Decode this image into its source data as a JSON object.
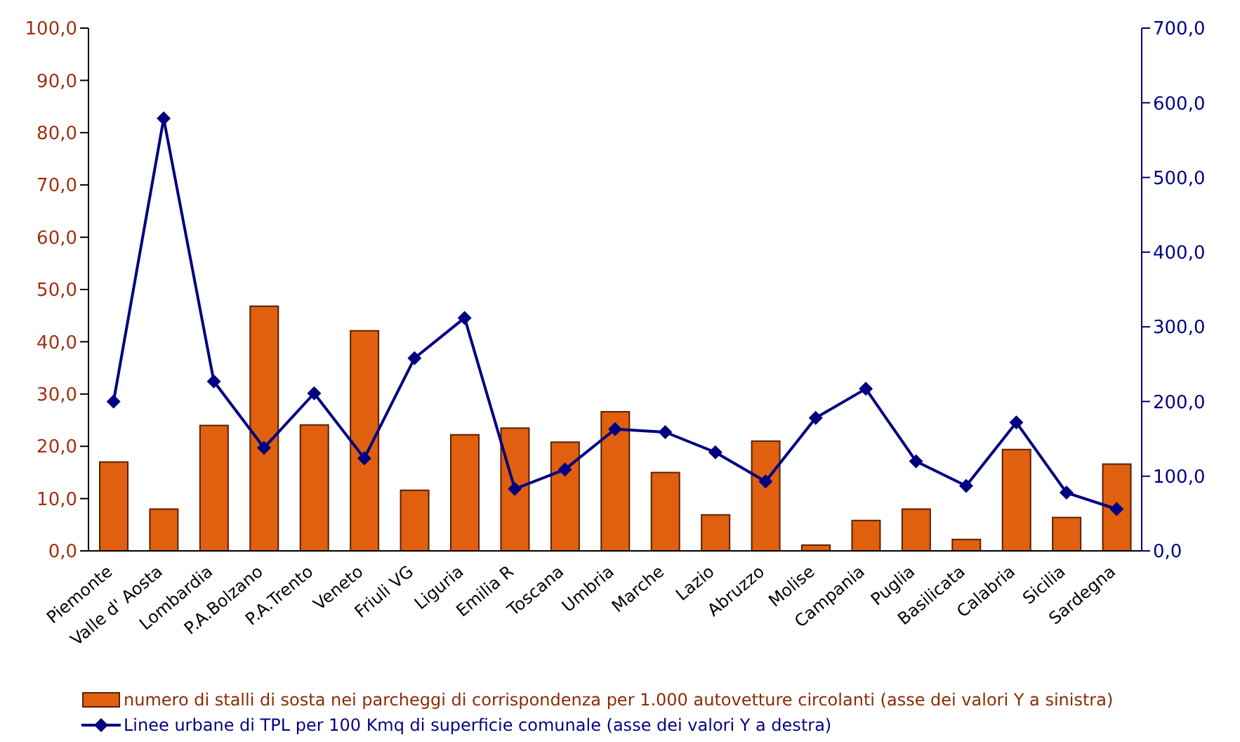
{
  "chart_data": {
    "type": "bar",
    "categories": [
      "Piemonte",
      "Valle d' Aosta",
      "Lombardia",
      "P.A.Bolzano",
      "P.A.Trento",
      "Veneto",
      "Friuli VG",
      "Liguria",
      "Emilia R",
      "Toscana",
      "Umbria",
      "Marche",
      "Lazio",
      "Abruzzo",
      "Molise",
      "Campania",
      "Puglia",
      "Basilicata",
      "Calabria",
      "Sicilia",
      "Sardegna"
    ],
    "series": [
      {
        "name": "numero di stalli di sosta nei parcheggi di corrispondenza per 1.000 autovetture circolanti (asse dei valori Y a sinistra)",
        "color": "#e0600f",
        "values": [
          17.0,
          8.0,
          24.0,
          46.8,
          24.1,
          42.1,
          11.6,
          22.2,
          23.5,
          20.8,
          26.6,
          15.0,
          6.9,
          21.0,
          1.1,
          5.8,
          8.0,
          2.2,
          19.4,
          6.4,
          16.6
        ]
      },
      {
        "name": "Linee urbane di TPL per 100 Kmq di superficie comunale (asse dei valori Y a destra)",
        "type": "line",
        "axis": "y2",
        "color": "#000080",
        "marker": "diamond",
        "values": [
          200,
          579,
          227,
          138,
          211,
          124,
          258,
          312,
          83,
          109,
          163,
          159,
          132,
          93,
          178,
          217,
          120,
          87,
          172,
          78,
          56
        ]
      }
    ],
    "ylim": [
      0,
      100
    ],
    "yticks": [
      {
        "value": 0,
        "label": "0,0"
      },
      {
        "value": 10,
        "label": "10,0"
      },
      {
        "value": 20,
        "label": "20,0"
      },
      {
        "value": 30,
        "label": "30,0"
      },
      {
        "value": 40,
        "label": "40,0"
      },
      {
        "value": 50,
        "label": "50,0"
      },
      {
        "value": 60,
        "label": "60,0"
      },
      {
        "value": 70,
        "label": "70,0"
      },
      {
        "value": 80,
        "label": "80,0"
      },
      {
        "value": 90,
        "label": "90,0"
      },
      {
        "value": 100,
        "label": "100,0"
      }
    ],
    "y2lim": [
      0,
      700
    ],
    "y2ticks": [
      {
        "value": 0,
        "label": "0,0"
      },
      {
        "value": 100,
        "label": "100,0"
      },
      {
        "value": 200,
        "label": "200,0"
      },
      {
        "value": 300,
        "label": "300,0"
      },
      {
        "value": 400,
        "label": "400,0"
      },
      {
        "value": 500,
        "label": "500,0"
      },
      {
        "value": 600,
        "label": "600,0"
      },
      {
        "value": 700,
        "label": "700,0"
      }
    ],
    "grid": false,
    "legend": "bottom"
  }
}
